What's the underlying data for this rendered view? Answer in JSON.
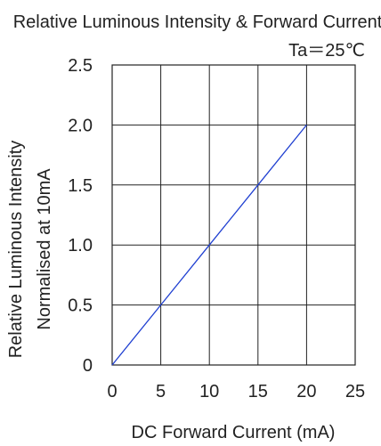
{
  "chart_data": {
    "type": "line",
    "title": "Relative Luminous Intensity & Forward Current",
    "subtitle": "Ta＝25℃",
    "xlabel": "DC Forward Current (mA)",
    "ylabel_lines": [
      "Relative Luminous Intensity",
      "Normalised at 10mA"
    ],
    "xlim": [
      0,
      25
    ],
    "ylim": [
      0,
      2.5
    ],
    "xticks": [
      0,
      5,
      10,
      15,
      20,
      25
    ],
    "yticks": [
      0,
      0.5,
      1.0,
      1.5,
      2.0,
      2.5
    ],
    "xtick_labels": [
      "0",
      "5",
      "10",
      "15",
      "20",
      "25"
    ],
    "ytick_labels": [
      "0",
      "0.5",
      "1.0",
      "1.5",
      "2.0",
      "2.5"
    ],
    "grid": true,
    "series": [
      {
        "color": "#1f3fd1",
        "x": [
          0,
          5,
          10,
          15,
          20
        ],
        "y": [
          0,
          0.5,
          1.0,
          1.5,
          2.0
        ]
      }
    ]
  }
}
